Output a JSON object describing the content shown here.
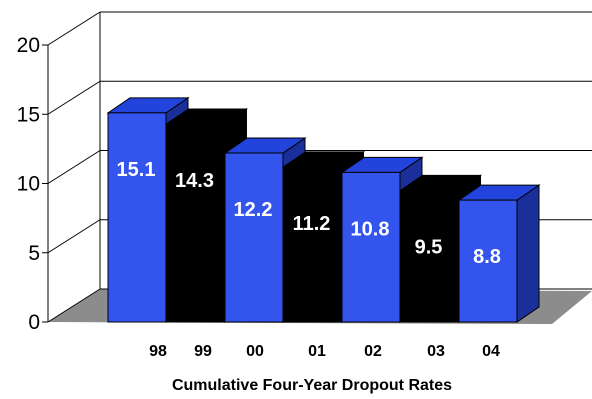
{
  "chart_data": {
    "type": "bar",
    "title": "Cumulative Four-Year Dropout Rates",
    "xlabel": "",
    "ylabel": "",
    "categories": [
      "98",
      "99",
      "00",
      "01",
      "02",
      "03",
      "04"
    ],
    "values": [
      15.1,
      14.3,
      12.2,
      11.2,
      10.8,
      9.5,
      8.8
    ],
    "data_labels": [
      "15.1",
      "14.3",
      "12.2",
      "11.2",
      "10.8",
      "9.5",
      "8.8"
    ],
    "ylim": [
      0,
      20
    ],
    "yticks": [
      "0",
      "5",
      "10",
      "15",
      "20"
    ],
    "grid": true,
    "three_d": true,
    "colors": {
      "bar_primary": "#3355ee",
      "bar_primary_top": "#2244dd",
      "bar_primary_side": "#1a2f9a",
      "bar_secondary": "#000000",
      "floor": "#8c8c8c",
      "label_on_blue": "#ffffff",
      "label_on_black": "#ffffff"
    }
  }
}
